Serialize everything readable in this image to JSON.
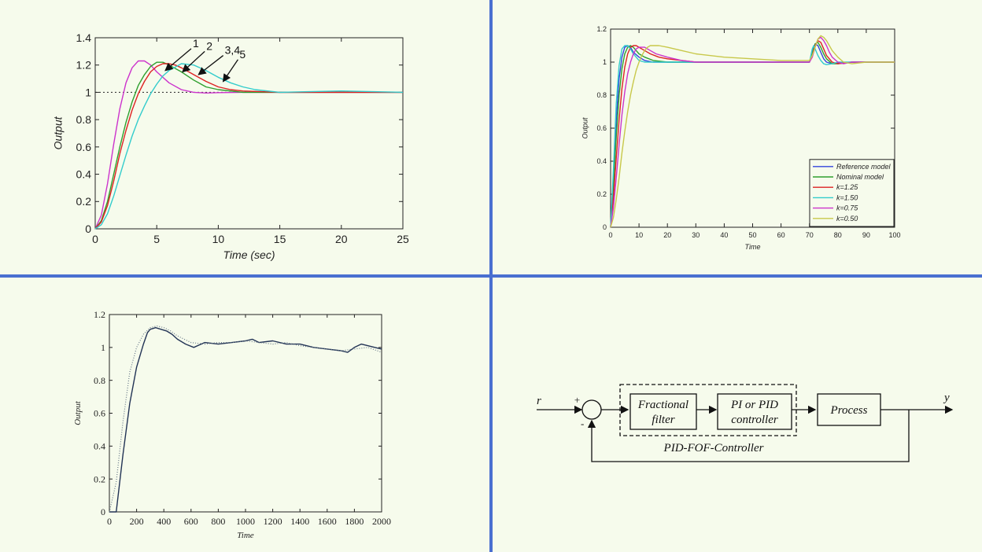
{
  "colors": {
    "background": "#f6fbec",
    "divider": "#4a6fd0"
  },
  "chart_data": [
    {
      "id": "tl",
      "type": "line",
      "xlabel": "Time (sec)",
      "ylabel": "Output",
      "xlim": [
        0,
        25
      ],
      "ylim": [
        0,
        1.4
      ],
      "xticks": [
        0,
        5,
        10,
        15,
        20,
        25
      ],
      "yticks": [
        0,
        0.2,
        0.4,
        0.6,
        0.8,
        1,
        1.2,
        1.4
      ],
      "xtick_labels": [
        "0",
        "5",
        "10",
        "15",
        "20",
        "25"
      ],
      "ytick_labels": [
        "0",
        "0.2",
        "0.4",
        "0.6",
        "0.8",
        "1",
        "1.2",
        "1.4"
      ],
      "reference_line": 1,
      "series": [
        {
          "color": "#cc33cc",
          "x": [
            0,
            0.5,
            1,
            1.5,
            2,
            2.5,
            3,
            3.5,
            4,
            4.5,
            5,
            6,
            7,
            8,
            9,
            10,
            12,
            15,
            20,
            25
          ],
          "y": [
            0,
            0.1,
            0.33,
            0.62,
            0.88,
            1.07,
            1.18,
            1.23,
            1.23,
            1.2,
            1.15,
            1.07,
            1.02,
            1.0,
            0.995,
            0.998,
            1.0,
            1.0,
            1.0,
            1.0
          ]
        },
        {
          "color": "#2e9f2e",
          "x": [
            0,
            0.5,
            1,
            1.5,
            2,
            2.5,
            3,
            3.5,
            4,
            4.5,
            5,
            5.5,
            6,
            7,
            8,
            9,
            10,
            12,
            15,
            20,
            25
          ],
          "y": [
            0,
            0.06,
            0.2,
            0.4,
            0.6,
            0.78,
            0.93,
            1.05,
            1.13,
            1.19,
            1.22,
            1.22,
            1.2,
            1.15,
            1.09,
            1.04,
            1.02,
            1.0,
            1.0,
            1.0,
            1.0
          ]
        },
        {
          "color": "#dd2222",
          "x": [
            0,
            0.5,
            1,
            1.5,
            2,
            2.5,
            3,
            3.5,
            4,
            4.5,
            5,
            5.5,
            6,
            6.5,
            7,
            8,
            9,
            10,
            11,
            12,
            15,
            20,
            25
          ],
          "y": [
            0,
            0.05,
            0.17,
            0.35,
            0.55,
            0.72,
            0.87,
            0.99,
            1.08,
            1.15,
            1.19,
            1.21,
            1.21,
            1.2,
            1.18,
            1.13,
            1.08,
            1.04,
            1.02,
            1.01,
            1.0,
            1.0,
            1.0
          ]
        },
        {
          "color": "#33cccc",
          "x": [
            0,
            0.5,
            1,
            1.5,
            2,
            2.5,
            3,
            3.5,
            4,
            4.5,
            5,
            5.5,
            6,
            7,
            8,
            9,
            10,
            11,
            12,
            13,
            15,
            20,
            25
          ],
          "y": [
            0,
            0.03,
            0.11,
            0.24,
            0.39,
            0.54,
            0.68,
            0.8,
            0.9,
            0.99,
            1.06,
            1.12,
            1.16,
            1.21,
            1.2,
            1.16,
            1.11,
            1.07,
            1.04,
            1.02,
            1.0,
            1.01,
            1.0
          ]
        }
      ],
      "annotations": [
        {
          "text": "1",
          "label_x": 7.8,
          "label_y": 1.32,
          "tip_x": 5.7,
          "tip_y": 1.16
        },
        {
          "text": "2",
          "label_x": 8.9,
          "label_y": 1.3,
          "tip_x": 7.1,
          "tip_y": 1.15
        },
        {
          "text": "3,4",
          "label_x": 10.4,
          "label_y": 1.27,
          "tip_x": 8.4,
          "tip_y": 1.13
        },
        {
          "text": "5",
          "label_x": 11.6,
          "label_y": 1.24,
          "tip_x": 10.4,
          "tip_y": 1.08
        }
      ]
    },
    {
      "id": "tr",
      "type": "line",
      "xlabel": "Time",
      "ylabel": "Output",
      "xlim": [
        0,
        100
      ],
      "ylim": [
        0,
        1.2
      ],
      "xticks": [
        0,
        10,
        20,
        30,
        40,
        50,
        60,
        70,
        80,
        90,
        100
      ],
      "yticks": [
        0,
        0.2,
        0.4,
        0.6,
        0.8,
        1,
        1.2
      ],
      "xtick_labels": [
        "0",
        "10",
        "20",
        "30",
        "40",
        "50",
        "60",
        "70",
        "80",
        "90",
        "100"
      ],
      "ytick_labels": [
        "0",
        "0.2",
        "0.4",
        "0.6",
        "0.8",
        "1",
        "1.2"
      ],
      "legend_position": "lower-right",
      "series": [
        {
          "name": "Reference model",
          "color": "#3344dd",
          "x": [
            0,
            1,
            2,
            3,
            4,
            5,
            6,
            7,
            8,
            10,
            12,
            15,
            20,
            30,
            70,
            71,
            72,
            73,
            74,
            75,
            76,
            78,
            80,
            85,
            90,
            100
          ],
          "y": [
            0,
            0.3,
            0.65,
            0.9,
            1.03,
            1.09,
            1.1,
            1.09,
            1.06,
            1.03,
            1.01,
            1.0,
            1.0,
            1.0,
            1.0,
            1.06,
            1.11,
            1.1,
            1.06,
            1.02,
            1.0,
            0.99,
            0.995,
            1.0,
            1.0,
            1.0
          ]
        },
        {
          "name": "Nominal model",
          "color": "#2e9f2e",
          "x": [
            0,
            1,
            2,
            3,
            4,
            5,
            6,
            7,
            8,
            9,
            10,
            12,
            15,
            20,
            30,
            70,
            71,
            72,
            73,
            74,
            75,
            76,
            78,
            80,
            85,
            90,
            100
          ],
          "y": [
            0,
            0.25,
            0.55,
            0.8,
            0.96,
            1.05,
            1.09,
            1.1,
            1.09,
            1.07,
            1.05,
            1.03,
            1.01,
            1.0,
            1.0,
            1.0,
            1.05,
            1.11,
            1.12,
            1.09,
            1.05,
            1.02,
            0.99,
            0.99,
            1.0,
            1.0,
            1.0
          ]
        },
        {
          "name": "k=1.25",
          "color": "#dd2222",
          "x": [
            0,
            1,
            2,
            3,
            4,
            5,
            6,
            7,
            8,
            9,
            10,
            12,
            14,
            17,
            20,
            30,
            70,
            71,
            72,
            73,
            74,
            75,
            76,
            78,
            80,
            85,
            90,
            100
          ],
          "y": [
            0,
            0.18,
            0.42,
            0.65,
            0.84,
            0.97,
            1.05,
            1.09,
            1.1,
            1.1,
            1.09,
            1.07,
            1.05,
            1.03,
            1.02,
            1.0,
            1.0,
            1.04,
            1.1,
            1.13,
            1.12,
            1.08,
            1.04,
            1.0,
            0.99,
            1.0,
            1.0,
            1.0
          ]
        },
        {
          "name": "k=1.50",
          "color": "#33cccc",
          "x": [
            0,
            1,
            2,
            3,
            4,
            5,
            6,
            7,
            8,
            9,
            10,
            12,
            15,
            20,
            30,
            70,
            70.5,
            71,
            71.5,
            72,
            73,
            74,
            75,
            76,
            78,
            80,
            90,
            100
          ],
          "y": [
            0,
            0.35,
            0.75,
            0.98,
            1.08,
            1.1,
            1.1,
            1.08,
            1.05,
            1.03,
            1.01,
            1.0,
            1.0,
            1.0,
            1.0,
            1.0,
            1.04,
            1.08,
            1.1,
            1.08,
            1.04,
            1.01,
            0.99,
            0.985,
            0.99,
            1.0,
            1.0,
            1.0
          ]
        },
        {
          "name": "k=0.75",
          "color": "#cc33cc",
          "x": [
            0,
            1,
            2,
            3,
            4,
            5,
            6,
            7,
            8,
            9,
            10,
            11,
            12,
            14,
            16,
            18,
            20,
            25,
            30,
            70,
            71,
            72,
            73,
            74,
            75,
            76,
            77,
            78,
            80,
            82,
            85,
            90,
            100
          ],
          "y": [
            0,
            0.12,
            0.3,
            0.5,
            0.68,
            0.82,
            0.93,
            1.0,
            1.05,
            1.08,
            1.09,
            1.09,
            1.09,
            1.07,
            1.05,
            1.04,
            1.03,
            1.01,
            1.0,
            1.0,
            1.03,
            1.09,
            1.14,
            1.15,
            1.13,
            1.1,
            1.06,
            1.03,
            1.0,
            0.99,
            1.0,
            1.0,
            1.0
          ]
        },
        {
          "name": "k=0.50",
          "color": "#c8c84a",
          "x": [
            0,
            1,
            2,
            3,
            4,
            5,
            6,
            7,
            8,
            9,
            10,
            11,
            12,
            13,
            14,
            15,
            17,
            20,
            25,
            30,
            40,
            50,
            60,
            70,
            71,
            72,
            73,
            74,
            75,
            76,
            77,
            78,
            80,
            82,
            85,
            90,
            100
          ],
          "y": [
            0,
            0.06,
            0.17,
            0.3,
            0.45,
            0.58,
            0.7,
            0.8,
            0.88,
            0.95,
            1.0,
            1.04,
            1.07,
            1.09,
            1.1,
            1.1,
            1.1,
            1.09,
            1.07,
            1.05,
            1.03,
            1.02,
            1.01,
            1.01,
            1.04,
            1.09,
            1.14,
            1.16,
            1.15,
            1.13,
            1.1,
            1.07,
            1.03,
            1.0,
            0.99,
            1.0,
            1.0
          ]
        }
      ]
    },
    {
      "id": "bl",
      "type": "line",
      "xlabel": "Time",
      "ylabel": "Output",
      "xlim": [
        0,
        2000
      ],
      "ylim": [
        0,
        1.2
      ],
      "xticks": [
        0,
        200,
        400,
        600,
        800,
        1000,
        1200,
        1400,
        1600,
        1800,
        2000
      ],
      "yticks": [
        0,
        0.2,
        0.4,
        0.6,
        0.8,
        1,
        1.2
      ],
      "xtick_labels": [
        "0",
        "200",
        "400",
        "600",
        "800",
        "1000",
        "1200",
        "1400",
        "1600",
        "1800",
        "2000"
      ],
      "ytick_labels": [
        "0",
        "0.2",
        "0.4",
        "0.6",
        "0.8",
        "1",
        "1.2"
      ],
      "series": [
        {
          "color": "#223355",
          "x": [
            0,
            50,
            100,
            150,
            200,
            250,
            280,
            300,
            340,
            380,
            420,
            460,
            500,
            560,
            620,
            700,
            800,
            900,
            1000,
            1050,
            1100,
            1200,
            1300,
            1400,
            1500,
            1600,
            1700,
            1750,
            1800,
            1850,
            1900,
            1950,
            2000
          ],
          "y": [
            0,
            0.0,
            0.35,
            0.66,
            0.88,
            1.02,
            1.09,
            1.11,
            1.12,
            1.11,
            1.1,
            1.08,
            1.05,
            1.02,
            1.0,
            1.03,
            1.02,
            1.03,
            1.04,
            1.05,
            1.03,
            1.04,
            1.02,
            1.02,
            1.0,
            0.99,
            0.98,
            0.97,
            1.0,
            1.02,
            1.01,
            1.0,
            0.99
          ]
        },
        {
          "color": "#667788",
          "style": "dotted",
          "x": [
            0,
            50,
            100,
            150,
            200,
            250,
            300,
            350,
            400,
            450,
            500,
            550,
            600,
            700,
            800,
            900,
            1000,
            1100,
            1200,
            1300,
            1400,
            1500,
            1600,
            1700,
            1800,
            1900,
            2000
          ],
          "y": [
            0,
            0.18,
            0.55,
            0.85,
            1.0,
            1.08,
            1.12,
            1.13,
            1.12,
            1.1,
            1.07,
            1.05,
            1.03,
            1.02,
            1.03,
            1.03,
            1.04,
            1.03,
            1.02,
            1.03,
            1.01,
            1.0,
            0.99,
            0.98,
            0.99,
            1.0,
            0.97
          ]
        }
      ]
    }
  ],
  "diagram": {
    "input_label": "r",
    "output_label": "y",
    "plus_sign": "+",
    "minus_sign": "-",
    "fractional_filter": [
      "Fractional",
      "filter"
    ],
    "pid_controller": [
      "PI or PID",
      "controller"
    ],
    "process": "Process",
    "group_label": "PID-FOF-Controller"
  }
}
